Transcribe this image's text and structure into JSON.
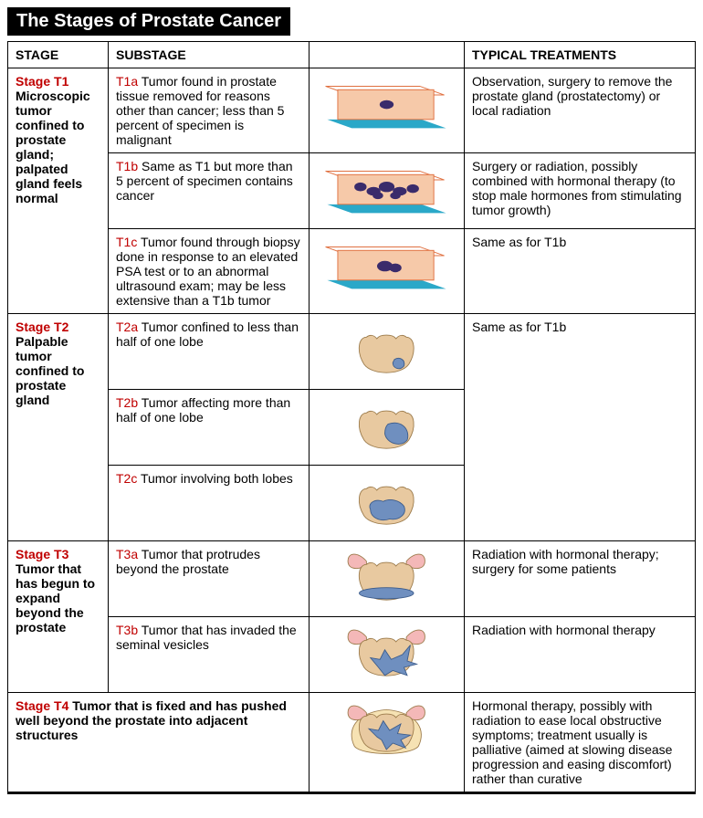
{
  "title": "The Stages of Prostate Cancer",
  "columns": {
    "stage": "STAGE",
    "substage": "SUBSTAGE",
    "image": "",
    "treatment": "TYPICAL TREATMENTS"
  },
  "colors": {
    "stage_label": "#c00000",
    "sub_label": "#c00000",
    "header_bg": "#000000",
    "header_fg": "#ffffff",
    "tissue_fill": "#f6c9a9",
    "tissue_stroke": "#e07040",
    "slide_edge": "#2aa8c8",
    "tumor_fill": "#3a2b6b",
    "prostate_fill": "#e8c9a0",
    "prostate_stroke": "#9b7a4a",
    "vesicle_fill": "#f4b8b8",
    "tumor_blue": "#6f8fbf",
    "tumor_blue_dark": "#3a5a8a"
  },
  "stages": [
    {
      "name": "Stage T1",
      "desc": "Microscopic tumor confined to prostate gland; palpated gland feels normal",
      "rows": [
        {
          "sub": "T1a",
          "sub_text": "Tumor found in prostate tissue removed for reasons other than cancer; less than 5 percent of specimen is malignant",
          "treatment": "Observation, surgery to remove the prostate gland (prostatectomy) or local radiation",
          "illus": "slide_small"
        },
        {
          "sub": "T1b",
          "sub_text": "Same as T1 but more than 5 percent of specimen contains cancer",
          "treatment": "Surgery or radiation, possibly combined with hormonal therapy (to stop male hormones from stimulating tumor growth)",
          "illus": "slide_many"
        },
        {
          "sub": "T1c",
          "sub_text": "Tumor found through biopsy done in response to an elevated PSA test or to an abnormal ultrasound exam; may be less extensive than a T1b tumor",
          "treatment": "Same as for T1b",
          "illus": "slide_medium"
        }
      ]
    },
    {
      "name": "Stage T2",
      "desc": "Palpable tumor confined to prostate gland",
      "treatment_shared": "Same as for T1b",
      "rows": [
        {
          "sub": "T2a",
          "sub_text": "Tumor confined to less than half of one lobe",
          "illus": "prostate_small"
        },
        {
          "sub": "T2b",
          "sub_text": "Tumor affecting more than half of one lobe",
          "illus": "prostate_half"
        },
        {
          "sub": "T2c",
          "sub_text": "Tumor involving both lobes",
          "illus": "prostate_both"
        }
      ]
    },
    {
      "name": "Stage T3",
      "desc": "Tumor that has begun to expand beyond the prostate",
      "rows": [
        {
          "sub": "T3a",
          "sub_text": "Tumor that protrudes beyond the prostate",
          "treatment": "Radiation with hormonal therapy; surgery for some patients",
          "illus": "prostate_vesicles_band"
        },
        {
          "sub": "T3b",
          "sub_text": "Tumor that has invaded the seminal vesicles",
          "treatment": "Radiation with hormonal therapy",
          "illus": "prostate_vesicles_invaded"
        }
      ]
    },
    {
      "name": "Stage T4",
      "desc": "Tumor that is fixed and has pushed well beyond the prostate into adjacent structures",
      "treatment_shared": "Hormonal therapy, possibly with radiation to ease local obstructive symptoms; treatment usually is palliative (aimed at slowing disease progression and easing discomfort) rather than curative",
      "rows": [
        {
          "sub": "",
          "sub_text": "",
          "illus": "prostate_adjacent"
        }
      ]
    }
  ]
}
